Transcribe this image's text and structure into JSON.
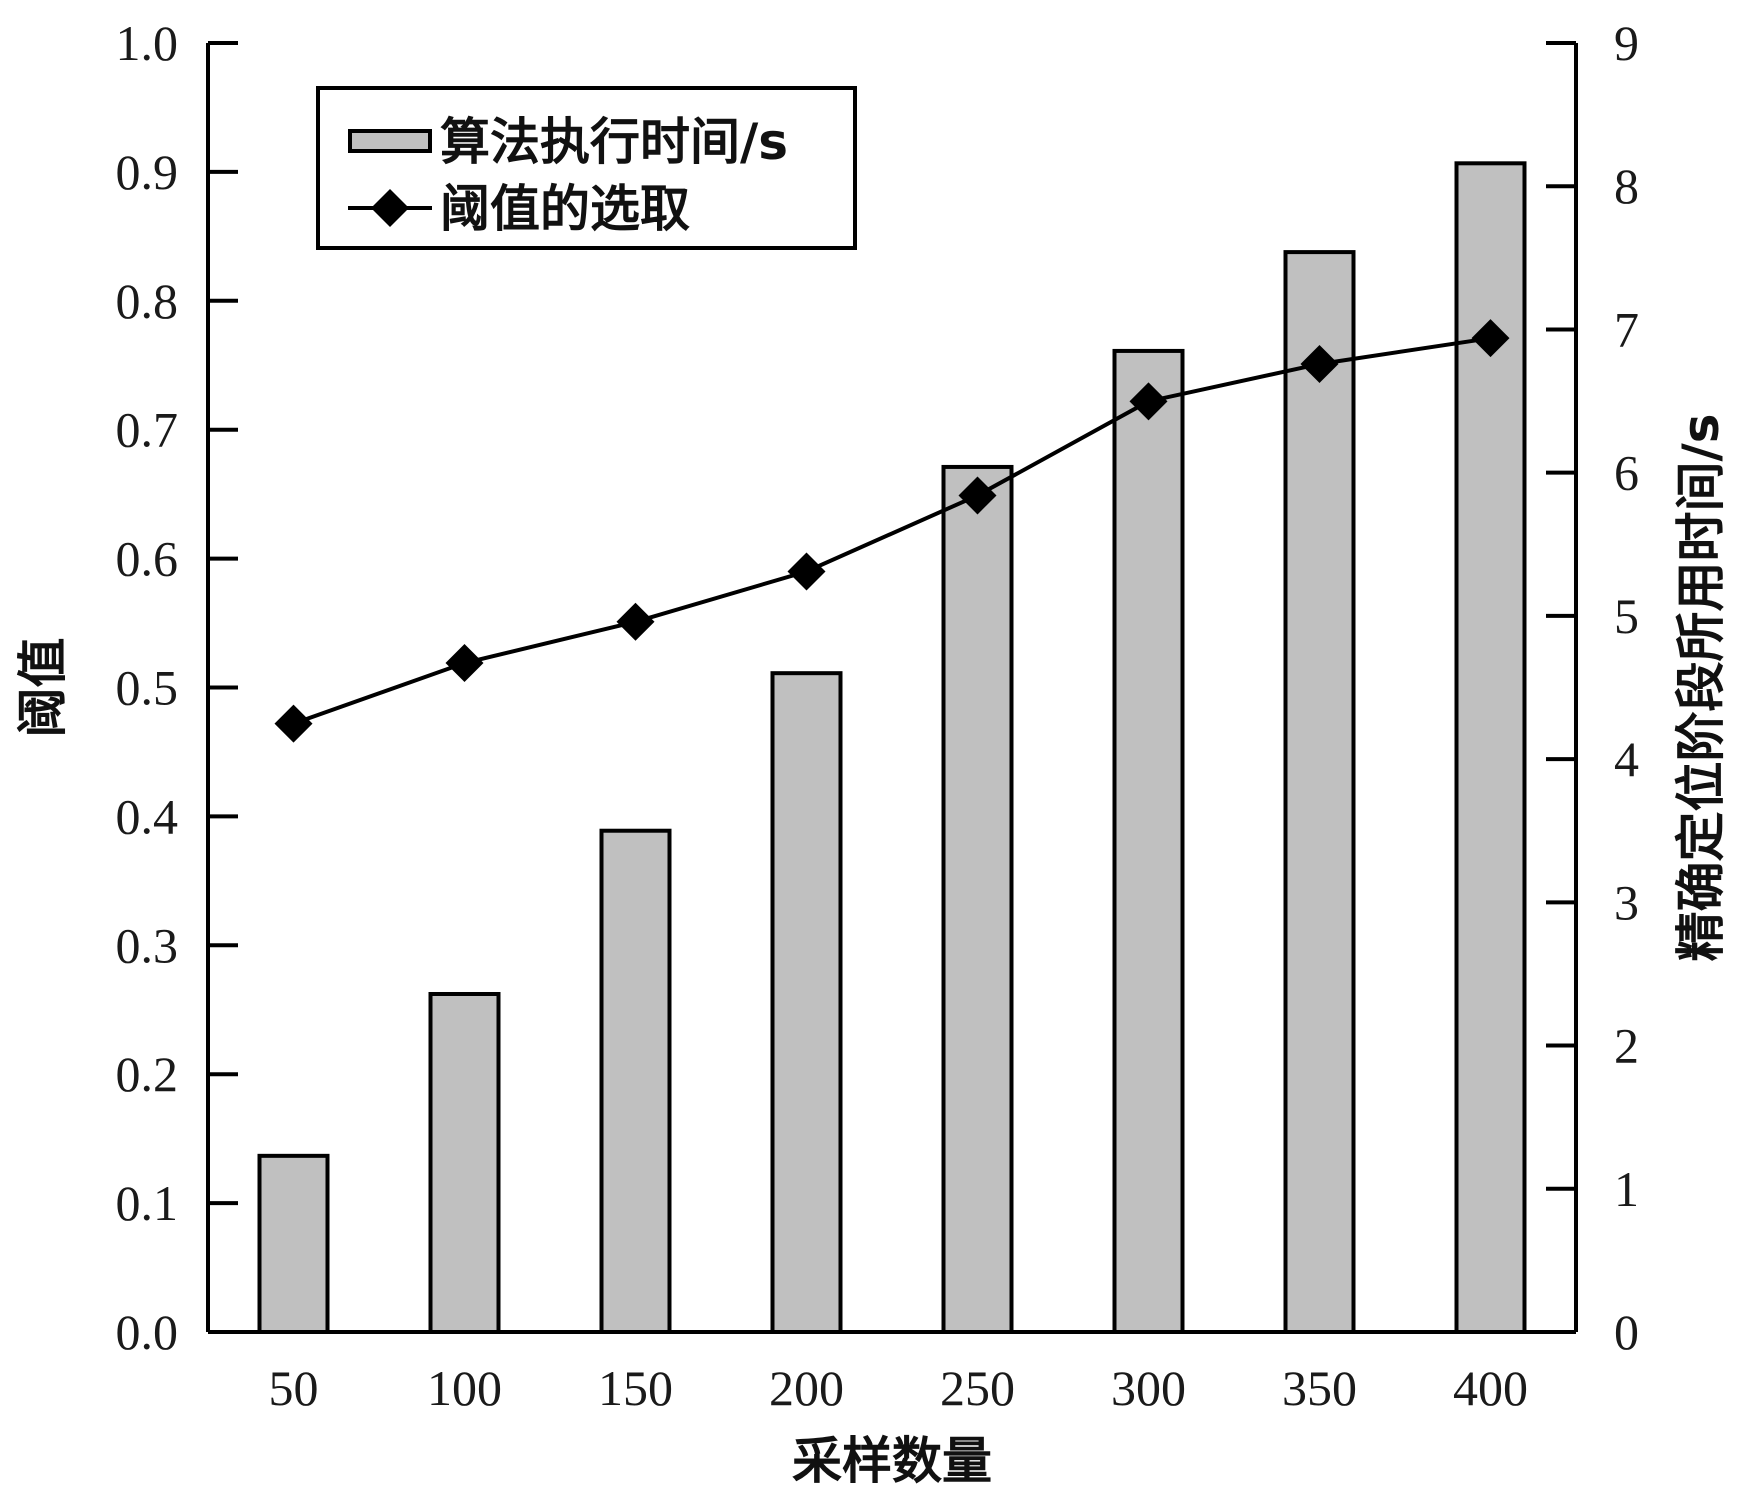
{
  "chart_data": {
    "type": "bar+line",
    "xlabel": "采样数量",
    "ylabel_left": "阈值",
    "ylabel_right": "精确定位阶段所用时间/s",
    "categories": [
      "50",
      "100",
      "150",
      "200",
      "250",
      "300",
      "350",
      "400"
    ],
    "x_values": [
      50,
      100,
      150,
      200,
      250,
      300,
      350,
      400
    ],
    "series": [
      {
        "name": "算法执行时间/s",
        "type": "bar",
        "axis": "right",
        "color": "#c0c0c0",
        "values": [
          1.23,
          2.36,
          3.5,
          4.6,
          6.04,
          6.85,
          7.54,
          8.16
        ]
      },
      {
        "name": "阈值的选取",
        "type": "line",
        "axis": "left",
        "marker": "diamond",
        "color": "#000000",
        "values": [
          0.472,
          0.519,
          0.551,
          0.59,
          0.649,
          0.722,
          0.751,
          0.771
        ]
      }
    ],
    "y_left": {
      "min": 0,
      "max": 1.0,
      "ticks": [
        "0.0",
        "0.1",
        "0.2",
        "0.3",
        "0.4",
        "0.5",
        "0.6",
        "0.7",
        "0.8",
        "0.9",
        "1.0"
      ]
    },
    "y_right": {
      "min": 0,
      "max": 9,
      "ticks": [
        "0",
        "1",
        "2",
        "3",
        "4",
        "5",
        "6",
        "7",
        "8",
        "9"
      ]
    },
    "grid": false,
    "legend_position": "top-left"
  }
}
